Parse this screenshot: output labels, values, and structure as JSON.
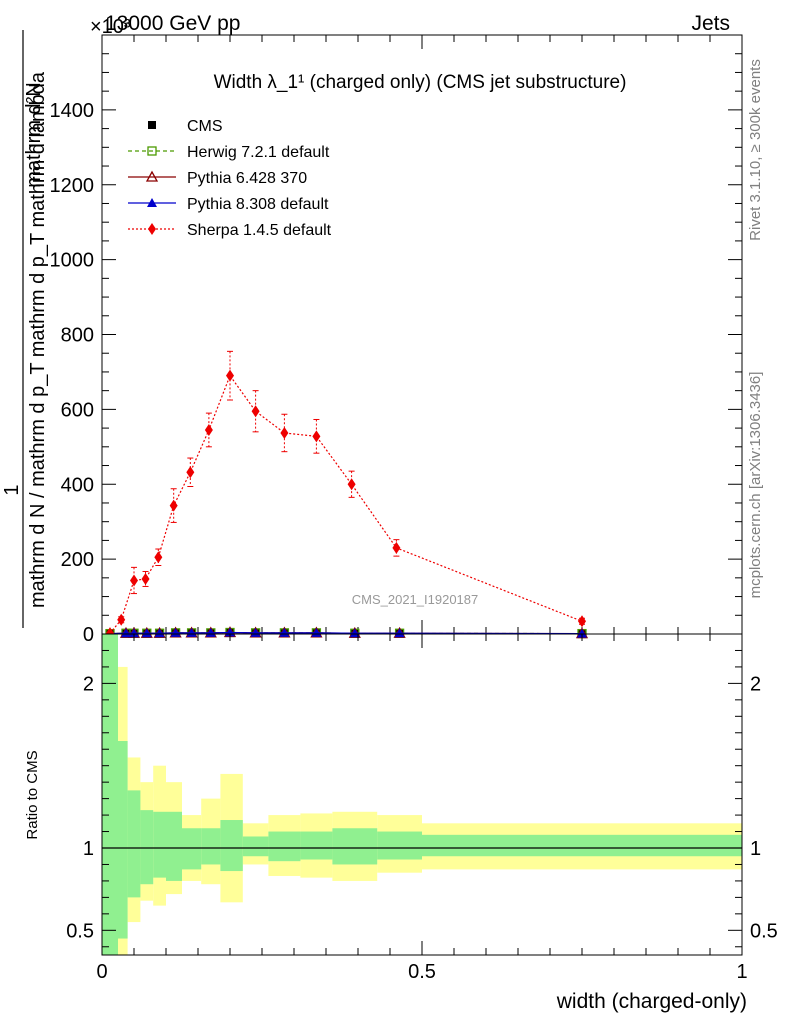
{
  "header": {
    "energy_label": "13000 GeV pp",
    "category_label": "Jets",
    "exponent_label": "×10³"
  },
  "side_labels": {
    "rivet": "Rivet 3.1.10, ≥ 300k events",
    "mcplots": "mcplots.cern.ch [arXiv:1306.3436]"
  },
  "watermark": "CMS_2021_I1920187",
  "chart_data": [
    {
      "type": "line",
      "title": "Width λ_1¹ (charged only) (CMS jet substructure)",
      "ylabel": {
        "prefix": "1",
        "denominator": "mathrm d N / mathrm d p_T mathrm d p_T mathrm d lambda",
        "numerator": "mathrm d²N"
      },
      "xlim": [
        0,
        1
      ],
      "ylim": [
        0,
        1600
      ],
      "y_ticks": [
        0,
        200,
        400,
        600,
        800,
        1000,
        1200,
        1400
      ],
      "y_tick_labels": [
        "0",
        "200",
        "400",
        "600",
        "800",
        "1000",
        "1200",
        "1400"
      ],
      "grid": false,
      "legend_placement": "top-left",
      "series": [
        {
          "name": "CMS",
          "color": "#000000",
          "marker": "filled-square",
          "line": "none",
          "x": [
            0.0125,
            0.0375,
            0.05,
            0.07,
            0.09,
            0.115,
            0.14,
            0.17,
            0.2,
            0.24,
            0.285,
            0.335,
            0.395,
            0.465,
            0.75
          ],
          "y": [
            1,
            2,
            2,
            2,
            2,
            3,
            3,
            3,
            4,
            3,
            3,
            3,
            2,
            2,
            1
          ]
        },
        {
          "name": "Herwig 7.2.1 default",
          "color": "#4c9a00",
          "marker": "open-square",
          "line": "dashed",
          "x": [
            0.0125,
            0.0375,
            0.05,
            0.07,
            0.09,
            0.115,
            0.14,
            0.17,
            0.2,
            0.24,
            0.285,
            0.335,
            0.395,
            0.465,
            0.75
          ],
          "y": [
            1,
            2,
            2,
            2,
            2,
            3,
            3,
            3,
            4,
            3,
            3,
            3,
            2,
            2,
            1
          ]
        },
        {
          "name": "Pythia 6.428 370",
          "color": "#8b0000",
          "marker": "open-triangle",
          "line": "solid",
          "x": [
            0.0125,
            0.0375,
            0.05,
            0.07,
            0.09,
            0.115,
            0.14,
            0.17,
            0.2,
            0.24,
            0.285,
            0.335,
            0.395,
            0.465,
            0.75
          ],
          "y": [
            1,
            2,
            2,
            2,
            2,
            3,
            3,
            3,
            4,
            3,
            3,
            3,
            2,
            2,
            1
          ]
        },
        {
          "name": "Pythia 8.308 default",
          "color": "#0000cc",
          "marker": "filled-triangle",
          "line": "solid",
          "x": [
            0.0125,
            0.0375,
            0.05,
            0.07,
            0.09,
            0.115,
            0.14,
            0.17,
            0.2,
            0.24,
            0.285,
            0.335,
            0.395,
            0.465,
            0.75
          ],
          "y": [
            1,
            2,
            2,
            2,
            2,
            3,
            3,
            3,
            4,
            3,
            3,
            3,
            2,
            2,
            1
          ]
        },
        {
          "name": "Sherpa 1.4.5 default",
          "color": "#ee0000",
          "marker": "filled-diamond",
          "line": "dotted",
          "x": [
            0.0125,
            0.03,
            0.05,
            0.068,
            0.088,
            0.112,
            0.138,
            0.167,
            0.2,
            0.24,
            0.285,
            0.335,
            0.39,
            0.46,
            0.75
          ],
          "y": [
            2,
            38,
            143,
            147,
            205,
            343,
            432,
            545,
            690,
            595,
            537,
            528,
            400,
            230,
            34
          ],
          "err": [
            1,
            8,
            35,
            20,
            22,
            45,
            38,
            45,
            65,
            55,
            50,
            45,
            35,
            22,
            8
          ]
        }
      ]
    },
    {
      "type": "area",
      "ylabel": "Ratio to CMS",
      "xlabel": "width (charged-only)",
      "xlim": [
        0,
        1
      ],
      "ylim": [
        0.35,
        2.3
      ],
      "y_ticks": [
        0.5,
        1,
        2
      ],
      "y_tick_labels": [
        "0.5",
        "1",
        "2"
      ],
      "x_ticks": [
        0,
        0.5,
        1
      ],
      "x_tick_labels": [
        "0",
        "0.5",
        "1"
      ],
      "reference": 1,
      "bands": [
        {
          "x0": 0,
          "x1": 0.025,
          "inner_lo": 0.35,
          "inner_hi": 2.3,
          "outer_lo": 0.35,
          "outer_hi": 2.3
        },
        {
          "x0": 0.025,
          "x1": 0.04,
          "inner_lo": 0.45,
          "inner_hi": 1.65,
          "outer_lo": 0.35,
          "outer_hi": 2.1
        },
        {
          "x0": 0.04,
          "x1": 0.06,
          "inner_lo": 0.7,
          "inner_hi": 1.35,
          "outer_lo": 0.55,
          "outer_hi": 1.55
        },
        {
          "x0": 0.06,
          "x1": 0.08,
          "inner_lo": 0.78,
          "inner_hi": 1.23,
          "outer_lo": 0.68,
          "outer_hi": 1.4
        },
        {
          "x0": 0.08,
          "x1": 0.1,
          "inner_lo": 0.82,
          "inner_hi": 1.22,
          "outer_lo": 0.65,
          "outer_hi": 1.5
        },
        {
          "x0": 0.1,
          "x1": 0.125,
          "inner_lo": 0.8,
          "inner_hi": 1.22,
          "outer_lo": 0.72,
          "outer_hi": 1.4
        },
        {
          "x0": 0.125,
          "x1": 0.155,
          "inner_lo": 0.87,
          "inner_hi": 1.12,
          "outer_lo": 0.8,
          "outer_hi": 1.2
        },
        {
          "x0": 0.155,
          "x1": 0.185,
          "inner_lo": 0.9,
          "inner_hi": 1.12,
          "outer_lo": 0.78,
          "outer_hi": 1.3
        },
        {
          "x0": 0.185,
          "x1": 0.22,
          "inner_lo": 0.86,
          "inner_hi": 1.17,
          "outer_lo": 0.67,
          "outer_hi": 1.45
        },
        {
          "x0": 0.22,
          "x1": 0.26,
          "inner_lo": 0.95,
          "inner_hi": 1.07,
          "outer_lo": 0.9,
          "outer_hi": 1.15
        },
        {
          "x0": 0.26,
          "x1": 0.31,
          "inner_lo": 0.92,
          "inner_hi": 1.1,
          "outer_lo": 0.83,
          "outer_hi": 1.2
        },
        {
          "x0": 0.31,
          "x1": 0.36,
          "inner_lo": 0.93,
          "inner_hi": 1.1,
          "outer_lo": 0.82,
          "outer_hi": 1.21
        },
        {
          "x0": 0.36,
          "x1": 0.43,
          "inner_lo": 0.9,
          "inner_hi": 1.12,
          "outer_lo": 0.8,
          "outer_hi": 1.22
        },
        {
          "x0": 0.43,
          "x1": 0.5,
          "inner_lo": 0.93,
          "inner_hi": 1.1,
          "outer_lo": 0.85,
          "outer_hi": 1.2
        },
        {
          "x0": 0.5,
          "x1": 1.0,
          "inner_lo": 0.95,
          "inner_hi": 1.08,
          "outer_lo": 0.87,
          "outer_hi": 1.15
        }
      ],
      "inner_color": "#90f090",
      "outer_color": "#ffff99"
    }
  ]
}
